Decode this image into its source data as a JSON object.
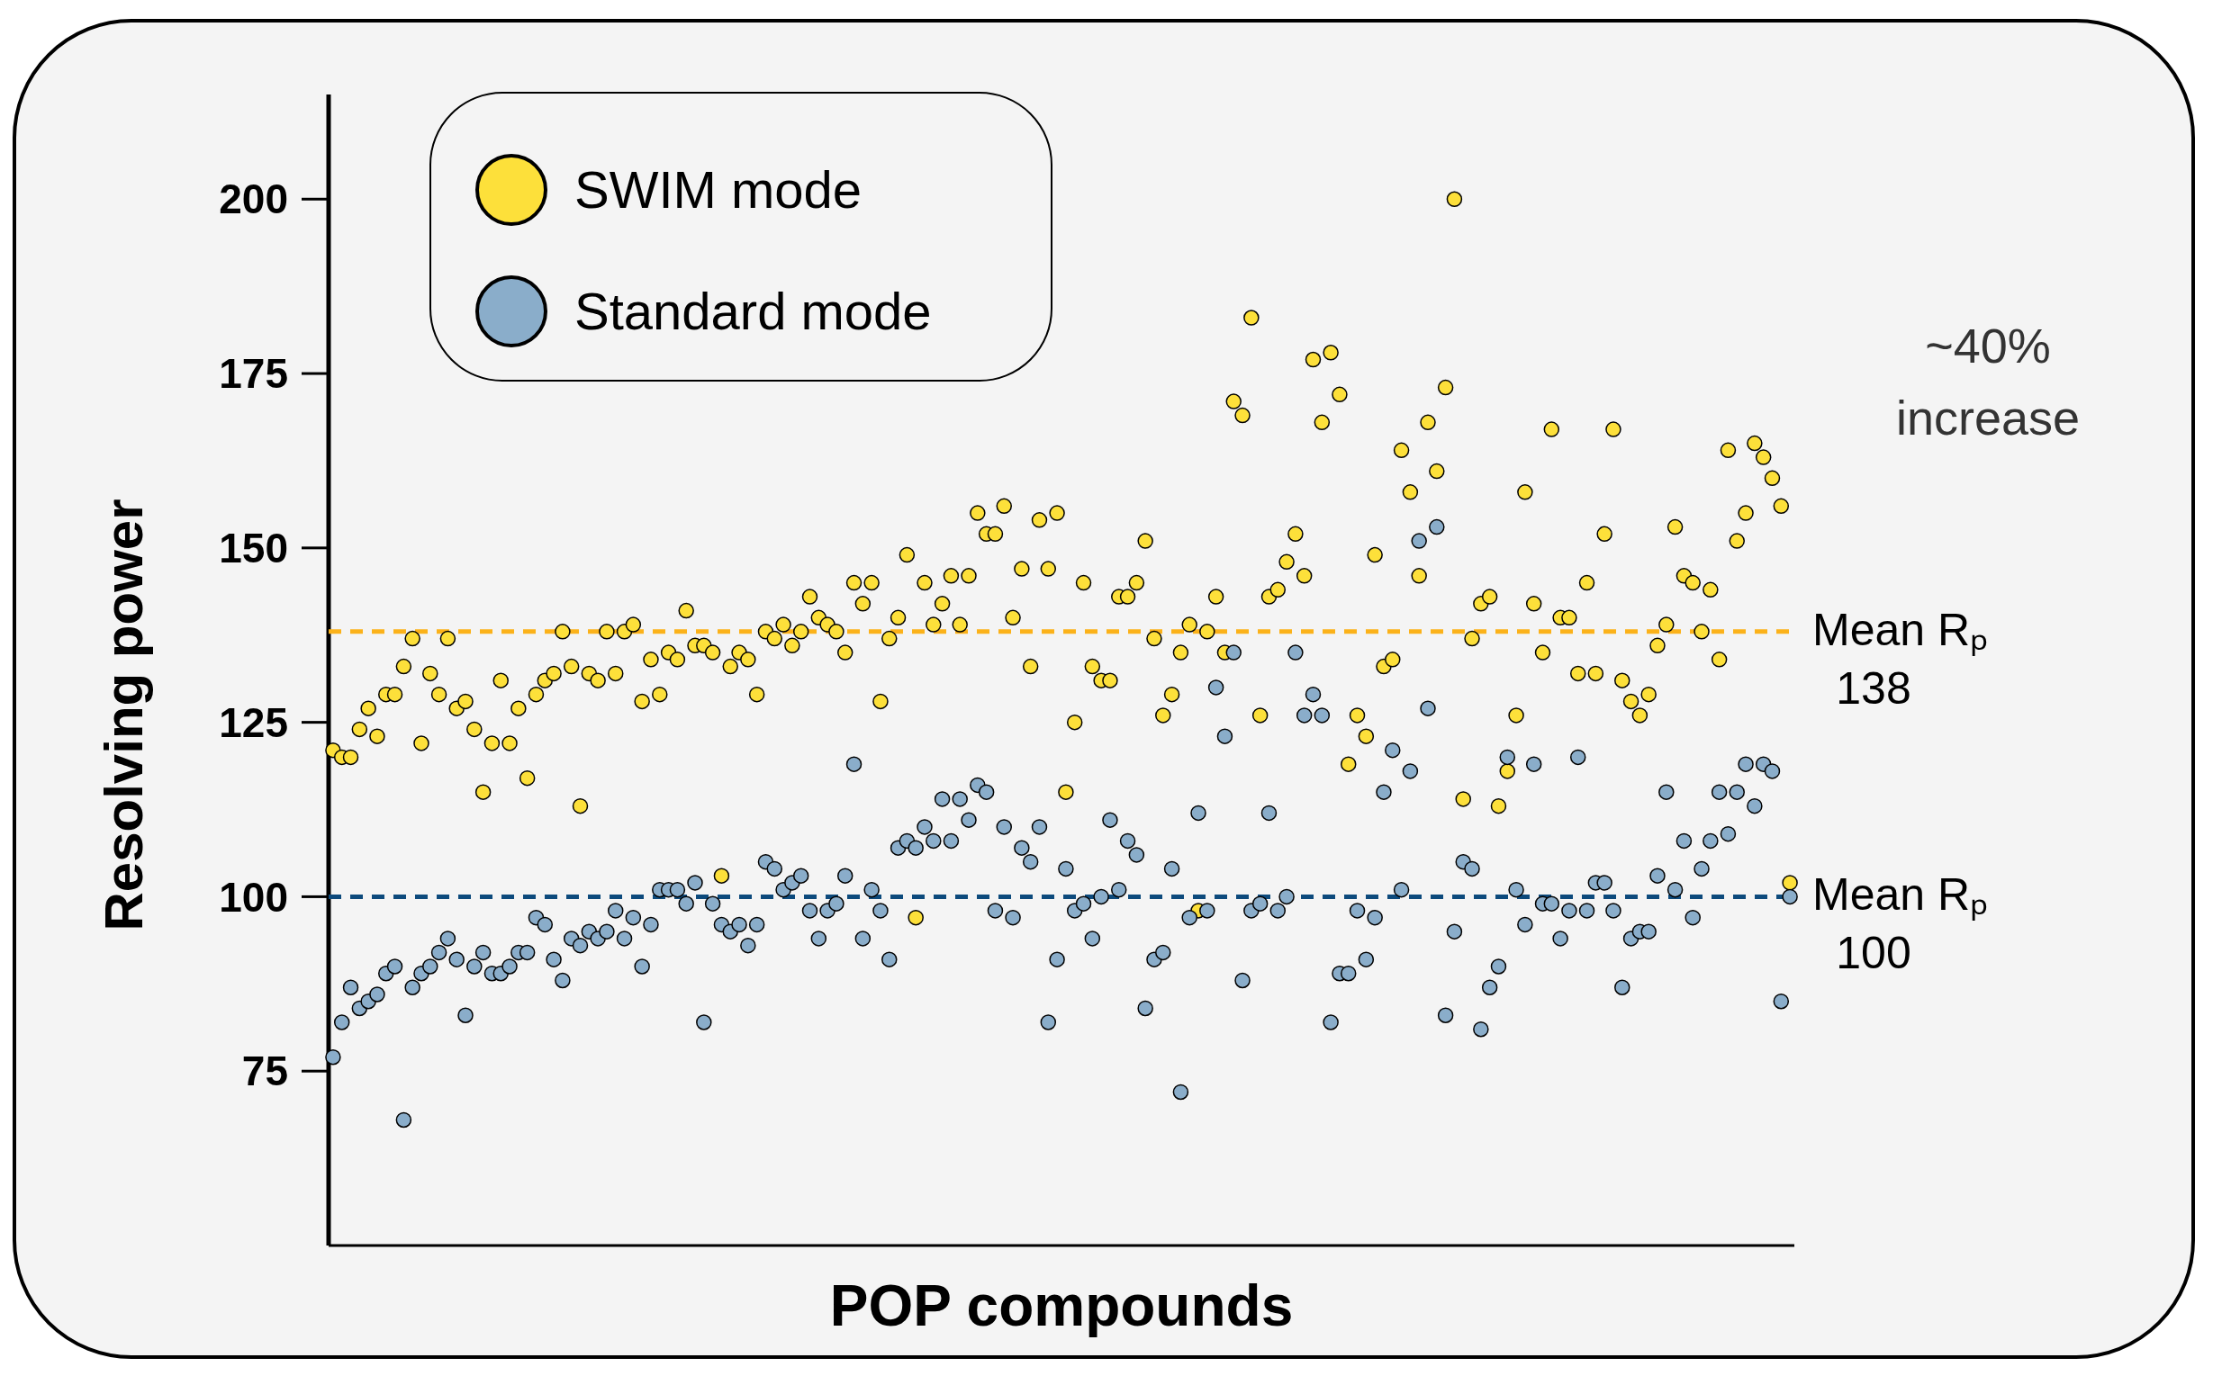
{
  "chart_data": {
    "type": "scatter",
    "xlabel": "POP compounds",
    "ylabel": "Resolving power",
    "categories": [
      null,
      null,
      null,
      null,
      null,
      null,
      null,
      null,
      null,
      null,
      null,
      null,
      null,
      null,
      null,
      null,
      null,
      null,
      null,
      null,
      null,
      null,
      null,
      null,
      null,
      null,
      null,
      null,
      null,
      null,
      null,
      null,
      null,
      null,
      null,
      null,
      null,
      null,
      null,
      null,
      null,
      null,
      null,
      null,
      null,
      null,
      null,
      null,
      null,
      null,
      null,
      null,
      null,
      null,
      null,
      null,
      null,
      null,
      null,
      null,
      null,
      null,
      null,
      null,
      null,
      null,
      null,
      null,
      null,
      null,
      null,
      null,
      null,
      null,
      null,
      null,
      null,
      null,
      null,
      null,
      null,
      null,
      null,
      null,
      null,
      null,
      null,
      null,
      null,
      null,
      null,
      null,
      null,
      null,
      null,
      null,
      null,
      null,
      null,
      null,
      null,
      null,
      null,
      null,
      null,
      null,
      null,
      null,
      null,
      null,
      null,
      null,
      null,
      null,
      null,
      null,
      null,
      null,
      null,
      null,
      null,
      null,
      null,
      null,
      null,
      null,
      null,
      null,
      null,
      null,
      null,
      null,
      null,
      null,
      null,
      null,
      null,
      null,
      null,
      null,
      null,
      null,
      null,
      null,
      null,
      null,
      null,
      null,
      null,
      null,
      null,
      null,
      null,
      null,
      null,
      null,
      null,
      null,
      null,
      null,
      null,
      null,
      null,
      null,
      null,
      null
    ],
    "ylim": [
      50,
      215
    ],
    "yticks": [
      75,
      100,
      125,
      150,
      175,
      200
    ],
    "tick_labels": "y",
    "grid": false,
    "legend": "top left",
    "marker": "circle",
    "series": [
      {
        "name": "SWIM mode",
        "color": "#fde03a",
        "values": [
          121,
          120,
          120,
          124,
          127,
          123,
          129,
          129,
          133,
          137,
          122,
          132,
          129,
          137,
          127,
          128,
          124,
          115,
          122,
          131,
          122,
          127,
          117,
          129,
          131,
          132,
          138,
          133,
          113,
          132,
          131,
          138,
          132,
          138,
          139,
          128,
          134,
          129,
          135,
          134,
          141,
          136,
          136,
          135,
          103,
          133,
          135,
          134,
          129,
          138,
          137,
          139,
          136,
          138,
          143,
          140,
          139,
          138,
          135,
          145,
          142,
          145,
          128,
          137,
          140,
          149,
          97,
          145,
          139,
          142,
          146,
          139,
          146,
          155,
          152,
          152,
          156,
          140,
          147,
          133,
          154,
          147,
          155,
          115,
          125,
          145,
          133,
          131,
          131,
          143,
          143,
          145,
          151,
          137,
          126,
          129,
          135,
          139,
          98,
          138,
          143,
          135,
          171,
          169,
          183,
          126,
          143,
          144,
          148,
          152,
          146,
          177,
          168,
          178,
          172,
          119,
          126,
          123,
          149,
          133,
          134,
          164,
          158,
          146,
          168,
          161,
          173,
          200,
          114,
          137,
          142,
          143,
          113,
          118,
          126,
          158,
          142,
          135,
          167,
          140,
          140,
          132,
          145,
          132,
          152,
          167,
          131,
          128,
          126,
          129,
          136,
          139,
          153,
          146,
          145,
          138,
          144,
          134,
          164,
          151,
          155,
          165,
          163,
          160,
          156,
          102
        ]
      },
      {
        "name": "Standard mode",
        "color": "#8aadca",
        "values": [
          77,
          82,
          87,
          84,
          85,
          86,
          89,
          90,
          68,
          87,
          89,
          90,
          92,
          94,
          91,
          83,
          90,
          92,
          89,
          89,
          90,
          92,
          92,
          97,
          96,
          91,
          88,
          94,
          93,
          95,
          94,
          95,
          98,
          94,
          97,
          90,
          96,
          101,
          101,
          101,
          99,
          102,
          82,
          99,
          96,
          95,
          96,
          93,
          96,
          105,
          104,
          101,
          102,
          103,
          98,
          94,
          98,
          99,
          103,
          119,
          94,
          101,
          98,
          91,
          107,
          108,
          107,
          110,
          108,
          114,
          108,
          114,
          111,
          116,
          115,
          98,
          110,
          97,
          107,
          105,
          110,
          82,
          91,
          104,
          98,
          99,
          94,
          100,
          111,
          101,
          108,
          106,
          84,
          91,
          92,
          104,
          72,
          97,
          112,
          98,
          130,
          123,
          135,
          88,
          98,
          99,
          112,
          98,
          100,
          135,
          126,
          129,
          126,
          82,
          89,
          89,
          98,
          91,
          97,
          115,
          121,
          101,
          118,
          151,
          127,
          153,
          83,
          95,
          105,
          104,
          81,
          87,
          90,
          120,
          101,
          96,
          119,
          99,
          99,
          94,
          98,
          120,
          98,
          102,
          102,
          98,
          87,
          94,
          95,
          95,
          103,
          115,
          101,
          108,
          97,
          104,
          108,
          115,
          109,
          115,
          119,
          113,
          119,
          118,
          85,
          100
        ]
      }
    ],
    "ref_lines": [
      {
        "axis": "y",
        "value": 138,
        "label": "Mean Rₚ 138",
        "color": "#fbb21a",
        "line_style": "dashed"
      },
      {
        "axis": "y",
        "value": 100,
        "label": "Mean Rₚ 100",
        "color": "#0d4a7c",
        "line_style": "dashed"
      }
    ],
    "annotations": [
      "~40% increase"
    ]
  }
}
